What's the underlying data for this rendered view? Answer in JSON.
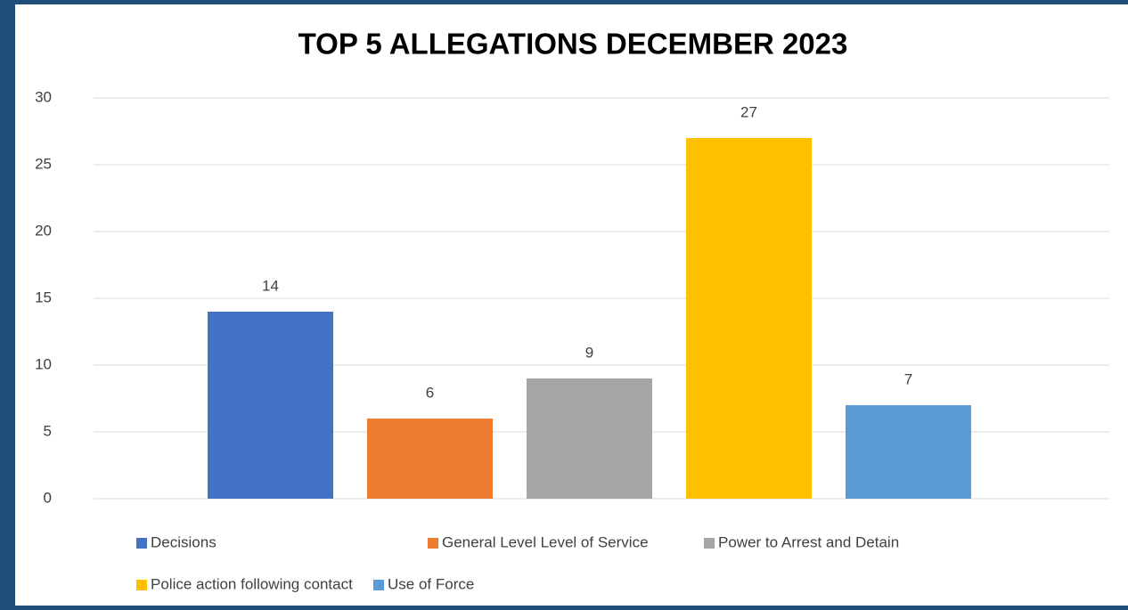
{
  "chart_data": {
    "type": "bar",
    "title": "TOP 5 ALLEGATIONS DECEMBER 2023",
    "categories": [
      null
    ],
    "series": [
      {
        "name": "Decisions",
        "color": "#4472c4",
        "values": [
          14
        ]
      },
      {
        "name": "General Level Level of Service",
        "color": "#ed7d31",
        "values": [
          6
        ]
      },
      {
        "name": "Power to Arrest and Detain",
        "color": "#a5a5a5",
        "values": [
          9
        ]
      },
      {
        "name": "Police action following contact",
        "color": "#ffc000",
        "values": [
          27
        ]
      },
      {
        "name": "Use of Force",
        "color": "#5b9bd5",
        "values": [
          7
        ]
      }
    ],
    "ylim": [
      0,
      30
    ],
    "yticks": [
      0,
      5,
      10,
      15,
      20,
      25,
      30
    ],
    "grid": true,
    "legend": "bottom"
  }
}
